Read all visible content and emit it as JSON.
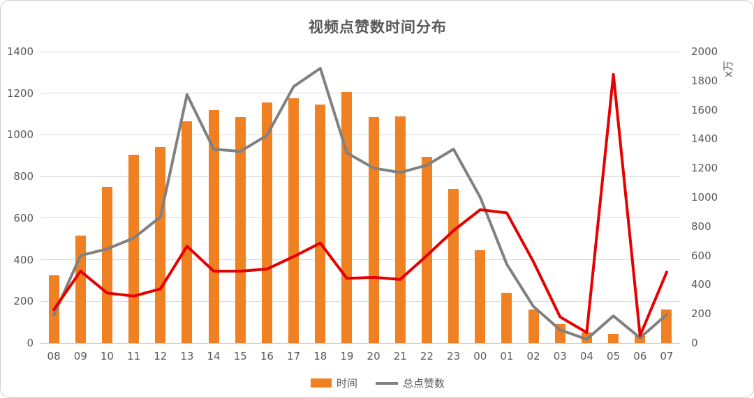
{
  "title": "视频点赞数时间分布",
  "colors": {
    "bar": "#F08122",
    "line_gray": "#808080",
    "line_red": "#E60000",
    "grid": "#D9D9D9",
    "text": "#595959"
  },
  "legend": [
    {
      "label": "时间",
      "type": "bar",
      "color": "#F08122"
    },
    {
      "label": "总点赞数",
      "type": "line",
      "color": "#808080"
    }
  ],
  "chart_data": {
    "type": "bar",
    "subtype": "combo-bar-and-lines",
    "title": "视频点赞数时间分布",
    "categories": [
      "08",
      "09",
      "10",
      "11",
      "12",
      "13",
      "14",
      "15",
      "16",
      "17",
      "18",
      "19",
      "20",
      "21",
      "22",
      "23",
      "00",
      "01",
      "02",
      "03",
      "04",
      "05",
      "06",
      "07"
    ],
    "series": [
      {
        "name": "时间",
        "type": "bar",
        "axis": "left",
        "color": "#F08122",
        "values": [
          325,
          515,
          750,
          905,
          940,
          1065,
          1120,
          1085,
          1155,
          1175,
          1145,
          1205,
          1085,
          1090,
          895,
          740,
          445,
          240,
          160,
          90,
          50,
          45,
          35,
          160
        ]
      },
      {
        "name": "总点赞数",
        "type": "line",
        "axis": "right",
        "color": "#808080",
        "values": [
          190,
          600,
          645,
          720,
          865,
          1705,
          1330,
          1315,
          1425,
          1760,
          1885,
          1305,
          1200,
          1170,
          1220,
          1330,
          1000,
          540,
          250,
          90,
          25,
          185,
          35,
          195
        ]
      },
      {
        "name": "",
        "type": "line",
        "axis": "left",
        "color": "#E60000",
        "values": [
          160,
          345,
          240,
          225,
          260,
          465,
          345,
          345,
          355,
          415,
          480,
          310,
          315,
          305,
          420,
          540,
          640,
          625,
          390,
          125,
          50,
          1290,
          35,
          340
        ]
      }
    ],
    "left_axis": {
      "min": 0,
      "max": 1400,
      "step": 200,
      "ticks": [
        0,
        200,
        400,
        600,
        800,
        1000,
        1200,
        1400
      ]
    },
    "right_axis": {
      "min": 0,
      "max": 2000,
      "step": 200,
      "ticks": [
        0,
        200,
        400,
        600,
        800,
        1000,
        1200,
        1400,
        1600,
        1800,
        2000
      ],
      "unit": "x万"
    },
    "grid": true,
    "legend_position": "bottom"
  }
}
